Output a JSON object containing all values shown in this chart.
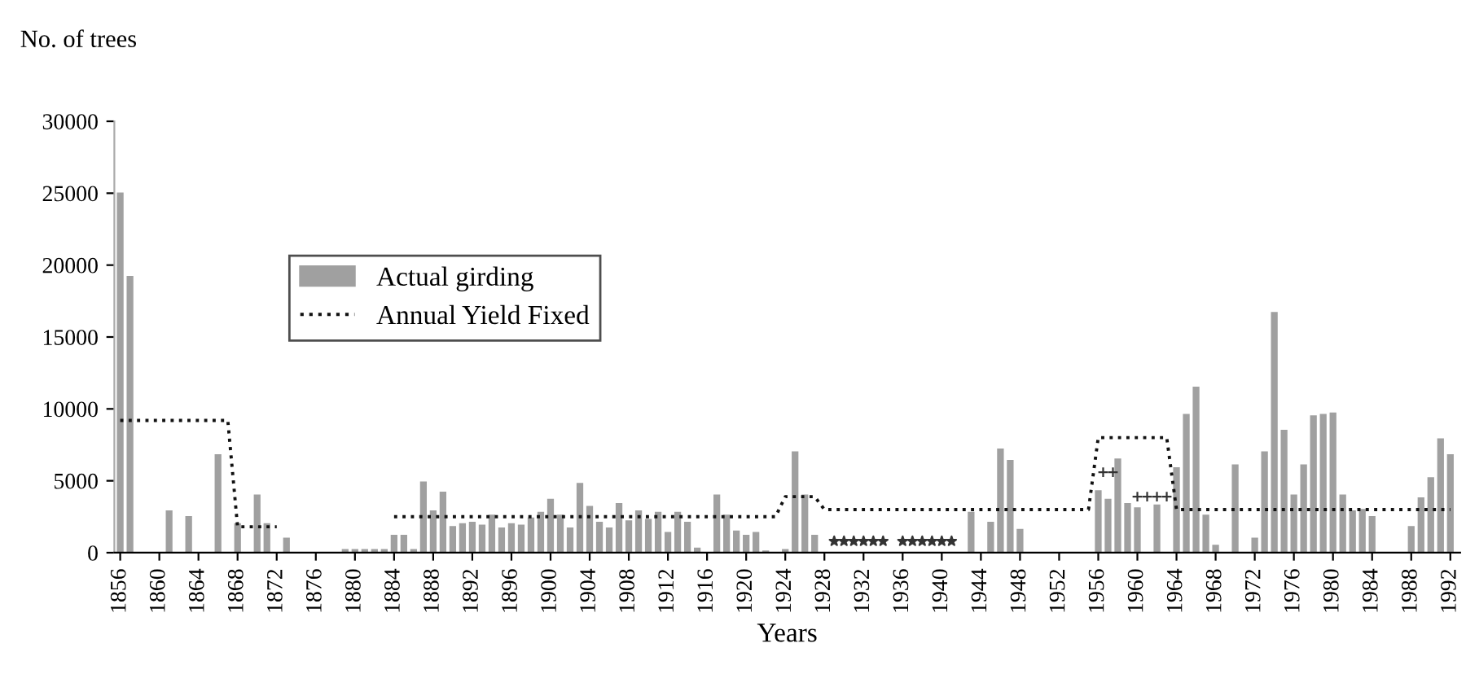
{
  "chart_data": {
    "type": "bar",
    "xlabel": "Years",
    "ylabel": "No. of trees",
    "x": [
      1856,
      1857,
      1858,
      1859,
      1860,
      1861,
      1862,
      1863,
      1864,
      1865,
      1866,
      1867,
      1868,
      1869,
      1870,
      1871,
      1872,
      1873,
      1874,
      1875,
      1876,
      1877,
      1878,
      1879,
      1880,
      1881,
      1882,
      1883,
      1884,
      1885,
      1886,
      1887,
      1888,
      1889,
      1890,
      1891,
      1892,
      1893,
      1894,
      1895,
      1896,
      1897,
      1898,
      1899,
      1900,
      1901,
      1902,
      1903,
      1904,
      1905,
      1906,
      1907,
      1908,
      1909,
      1910,
      1911,
      1912,
      1913,
      1914,
      1915,
      1916,
      1917,
      1918,
      1919,
      1920,
      1921,
      1922,
      1923,
      1924,
      1925,
      1926,
      1927,
      1928,
      1929,
      1930,
      1931,
      1932,
      1933,
      1934,
      1935,
      1936,
      1937,
      1938,
      1939,
      1940,
      1941,
      1942,
      1943,
      1944,
      1945,
      1946,
      1947,
      1948,
      1949,
      1950,
      1951,
      1952,
      1953,
      1954,
      1955,
      1956,
      1957,
      1958,
      1959,
      1960,
      1961,
      1962,
      1963,
      1964,
      1965,
      1966,
      1967,
      1968,
      1969,
      1970,
      1971,
      1972,
      1973,
      1974,
      1975,
      1976,
      1977,
      1978,
      1979,
      1980,
      1981,
      1982,
      1983,
      1984,
      1985,
      1986,
      1987,
      1988,
      1989,
      1990,
      1991,
      1992
    ],
    "series": [
      {
        "name": "Actual girding",
        "color": "#a0a0a0",
        "values": [
          25000,
          19200,
          0,
          0,
          0,
          2900,
          0,
          2500,
          0,
          0,
          6800,
          0,
          2000,
          0,
          4000,
          2000,
          0,
          1000,
          0,
          0,
          0,
          0,
          0,
          200,
          200,
          200,
          200,
          200,
          1200,
          1200,
          200,
          4900,
          2900,
          4200,
          1800,
          2000,
          2100,
          1900,
          2600,
          1700,
          2000,
          1900,
          2400,
          2800,
          3700,
          2600,
          1700,
          4800,
          3200,
          2100,
          1700,
          3400,
          2200,
          2900,
          2300,
          2800,
          1400,
          2800,
          2100,
          300,
          0,
          4000,
          2600,
          1500,
          1200,
          1400,
          100,
          0,
          200,
          7000,
          4000,
          1200,
          0,
          0,
          0,
          0,
          0,
          0,
          0,
          0,
          0,
          0,
          0,
          0,
          0,
          0,
          0,
          2800,
          0,
          2100,
          7200,
          6400,
          1600,
          0,
          0,
          0,
          0,
          0,
          0,
          0,
          4300,
          3700,
          6500,
          3400,
          3100,
          0,
          3300,
          0,
          5900,
          9600,
          11500,
          2600,
          500,
          0,
          6100,
          0,
          1000,
          7000,
          16700,
          8500,
          4000,
          6100,
          9500,
          9600,
          9700,
          4000,
          2900,
          3000,
          2500,
          0,
          0,
          0,
          1800,
          3800,
          5200,
          7900,
          6800
        ]
      },
      {
        "name": "Annual Yield Fixed",
        "type": "line",
        "color": "#111111",
        "line_style": "dotted",
        "values": [
          9200,
          9200,
          9200,
          9200,
          9200,
          9200,
          9200,
          9200,
          9200,
          9200,
          9200,
          9200,
          1800,
          1800,
          1800,
          1800,
          1800,
          null,
          null,
          null,
          null,
          null,
          null,
          null,
          null,
          null,
          null,
          null,
          2500,
          2500,
          2500,
          2500,
          2500,
          2500,
          2500,
          2500,
          2500,
          2500,
          2500,
          2500,
          2500,
          2500,
          2500,
          2500,
          2500,
          2500,
          2500,
          2500,
          2500,
          2500,
          2500,
          2500,
          2500,
          2500,
          2500,
          2500,
          2500,
          2500,
          2500,
          2500,
          2500,
          2500,
          2500,
          2500,
          2500,
          2500,
          2500,
          2500,
          3900,
          3900,
          3900,
          3900,
          3000,
          3000,
          3000,
          3000,
          3000,
          3000,
          3000,
          3000,
          3000,
          3000,
          3000,
          3000,
          3000,
          3000,
          3000,
          3000,
          3000,
          3000,
          3000,
          3000,
          3000,
          3000,
          3000,
          3000,
          3000,
          3000,
          3000,
          3000,
          8000,
          8000,
          8000,
          8000,
          8000,
          8000,
          8000,
          8000,
          3000,
          3000,
          3000,
          3000,
          3000,
          3000,
          3000,
          3000,
          3000,
          3000,
          3000,
          3000,
          3000,
          3000,
          3000,
          3000,
          3000,
          3000,
          3000,
          3000,
          3000,
          3000,
          3000,
          3000,
          3000,
          3000,
          3000,
          3000,
          3000
        ]
      },
      {
        "type": "scatter",
        "marker": "star",
        "color": "#333333",
        "x": [
          1929,
          1930,
          1931,
          1932,
          1933,
          1934,
          1936,
          1937,
          1938,
          1939,
          1940,
          1941
        ],
        "values": [
          800,
          800,
          800,
          800,
          800,
          800,
          800,
          800,
          800,
          800,
          800,
          800
        ]
      },
      {
        "type": "scatter",
        "marker": "cross",
        "color": "#333333",
        "x": [
          1956.5,
          1957.5,
          1960,
          1961,
          1962,
          1963
        ],
        "values": [
          5600,
          5600,
          3900,
          3900,
          3900,
          3900
        ]
      }
    ],
    "xlim": [
      1855.4,
      1993
    ],
    "xticks": [
      1856,
      1860,
      1864,
      1868,
      1872,
      1876,
      1880,
      1884,
      1888,
      1892,
      1896,
      1900,
      1904,
      1908,
      1912,
      1916,
      1920,
      1924,
      1928,
      1932,
      1936,
      1940,
      1944,
      1948,
      1952,
      1956,
      1960,
      1964,
      1968,
      1972,
      1976,
      1980,
      1984,
      1988,
      1992
    ],
    "ylim": [
      0,
      30000
    ],
    "yticks": [
      0,
      5000,
      10000,
      15000,
      20000,
      25000,
      30000
    ],
    "grid": false,
    "legend": "top left"
  }
}
